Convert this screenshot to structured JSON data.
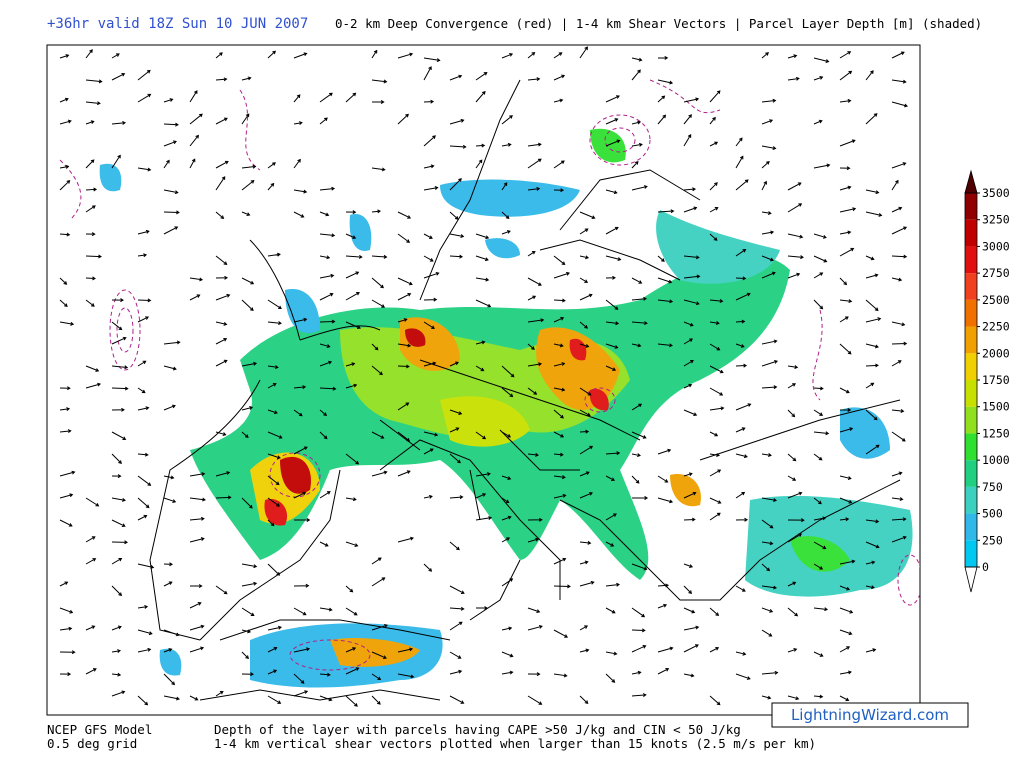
{
  "header": {
    "valid": "+36hr valid 18Z Sun 10 JUN 2007",
    "description": "0-2 km Deep Convergence (red) | 1-4 km Shear Vectors | Parcel Layer Depth [m] (shaded)"
  },
  "colorbar": {
    "ticks": [
      0,
      250,
      500,
      750,
      1000,
      1250,
      1500,
      1750,
      2000,
      2250,
      2500,
      2750,
      3000,
      3250,
      3500
    ],
    "colors": [
      "#00c8f0",
      "#30b8e8",
      "#3cd0c0",
      "#20d080",
      "#30e030",
      "#90e020",
      "#c8e000",
      "#f0d000",
      "#f0a000",
      "#f07000",
      "#f04020",
      "#e01010",
      "#c00000",
      "#900000"
    ],
    "over_color": "#500000"
  },
  "footer": {
    "model": "NCEP GFS Model",
    "grid": "0.5 deg grid",
    "line1": "Depth of the layer with parcels having CAPE >50 J/kg and CIN < 50 J/kg",
    "line2": "1-4 km vertical shear vectors plotted when larger than 15 knots (2.5 m/s per km)"
  },
  "watermark": "LightningWizard.com"
}
